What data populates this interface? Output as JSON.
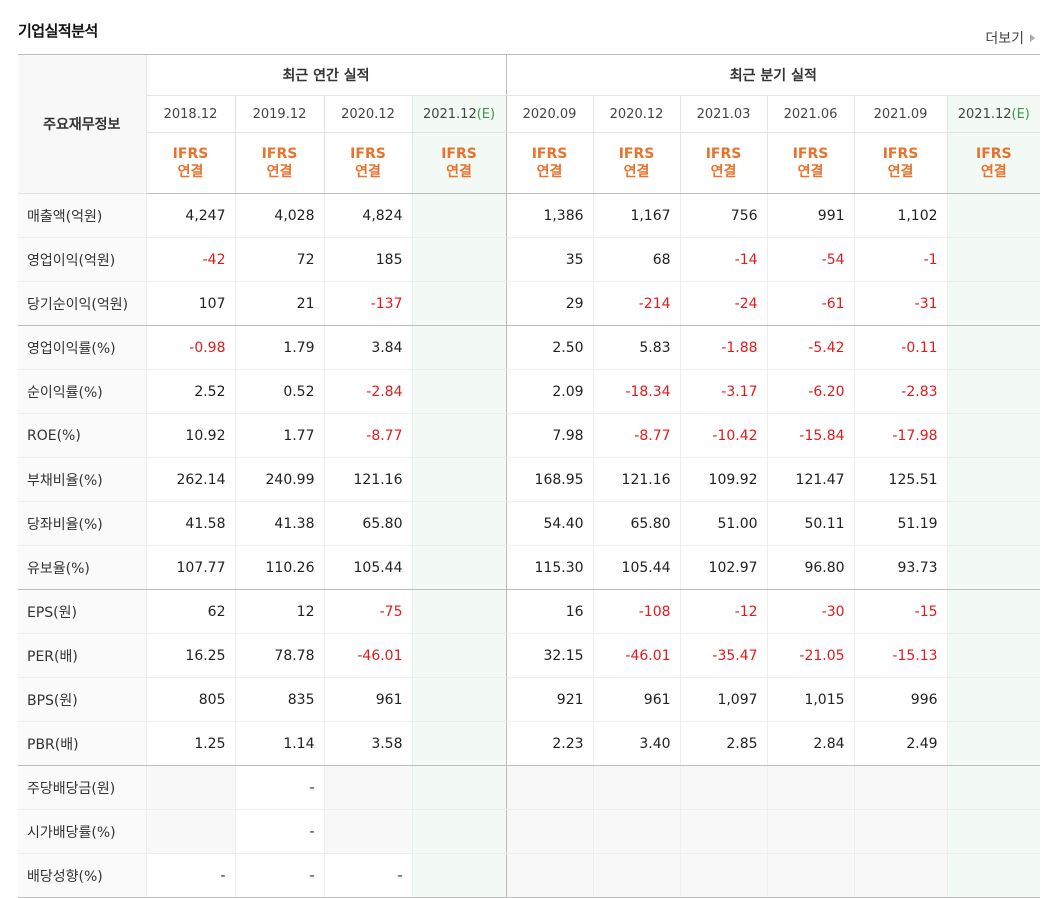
{
  "title": "기업실적분석",
  "more_label": "더보기",
  "header": {
    "label": "주요재무정보",
    "annual_group": "최근 연간 실적",
    "quarterly_group": "최근 분기 실적",
    "annual_periods": [
      "2018.12",
      "2019.12",
      "2020.12",
      "2021.12"
    ],
    "quarterly_periods": [
      "2020.09",
      "2020.12",
      "2021.03",
      "2021.06",
      "2021.09",
      "2021.12"
    ],
    "estimate_mark": "(E)",
    "standard_line1": "IFRS",
    "standard_line2": "연결"
  },
  "rows": [
    {
      "label": "매출액(억원)",
      "values": [
        "4,247",
        "4,028",
        "4,824",
        "",
        "1,386",
        "1,167",
        "756",
        "991",
        "1,102",
        ""
      ]
    },
    {
      "label": "영업이익(억원)",
      "values": [
        "-42",
        "72",
        "185",
        "",
        "35",
        "68",
        "-14",
        "-54",
        "-1",
        ""
      ]
    },
    {
      "label": "당기순이익(억원)",
      "values": [
        "107",
        "21",
        "-137",
        "",
        "29",
        "-214",
        "-24",
        "-61",
        "-31",
        ""
      ]
    },
    {
      "label": "영업이익률(%)",
      "values": [
        "-0.98",
        "1.79",
        "3.84",
        "",
        "2.50",
        "5.83",
        "-1.88",
        "-5.42",
        "-0.11",
        ""
      ]
    },
    {
      "label": "순이익률(%)",
      "values": [
        "2.52",
        "0.52",
        "-2.84",
        "",
        "2.09",
        "-18.34",
        "-3.17",
        "-6.20",
        "-2.83",
        ""
      ]
    },
    {
      "label": "ROE(%)",
      "values": [
        "10.92",
        "1.77",
        "-8.77",
        "",
        "7.98",
        "-8.77",
        "-10.42",
        "-15.84",
        "-17.98",
        ""
      ]
    },
    {
      "label": "부채비율(%)",
      "values": [
        "262.14",
        "240.99",
        "121.16",
        "",
        "168.95",
        "121.16",
        "109.92",
        "121.47",
        "125.51",
        ""
      ]
    },
    {
      "label": "당좌비율(%)",
      "values": [
        "41.58",
        "41.38",
        "65.80",
        "",
        "54.40",
        "65.80",
        "51.00",
        "50.11",
        "51.19",
        ""
      ]
    },
    {
      "label": "유보율(%)",
      "values": [
        "107.77",
        "110.26",
        "105.44",
        "",
        "115.30",
        "105.44",
        "102.97",
        "96.80",
        "93.73",
        ""
      ]
    },
    {
      "label": "EPS(원)",
      "values": [
        "62",
        "12",
        "-75",
        "",
        "16",
        "-108",
        "-12",
        "-30",
        "-15",
        ""
      ]
    },
    {
      "label": "PER(배)",
      "values": [
        "16.25",
        "78.78",
        "-46.01",
        "",
        "32.15",
        "-46.01",
        "-35.47",
        "-21.05",
        "-15.13",
        ""
      ]
    },
    {
      "label": "BPS(원)",
      "values": [
        "805",
        "835",
        "961",
        "",
        "921",
        "961",
        "1,097",
        "1,015",
        "996",
        ""
      ]
    },
    {
      "label": "PBR(배)",
      "values": [
        "1.25",
        "1.14",
        "3.58",
        "",
        "2.23",
        "3.40",
        "2.85",
        "2.84",
        "2.49",
        ""
      ]
    },
    {
      "label": "주당배당금(원)",
      "values": [
        "",
        "-",
        "",
        "",
        "",
        "",
        "",
        "",
        "",
        ""
      ]
    },
    {
      "label": "시가배당률(%)",
      "values": [
        "",
        "-",
        "",
        "",
        "",
        "",
        "",
        "",
        "",
        ""
      ]
    },
    {
      "label": "배당성향(%)",
      "values": [
        "-",
        "-",
        "-",
        "",
        "",
        "",
        "",
        "",
        "",
        ""
      ]
    }
  ],
  "colors": {
    "negative": "#e3191c",
    "ifrs": "#e8722c",
    "estimate": "#3a9a4a"
  }
}
